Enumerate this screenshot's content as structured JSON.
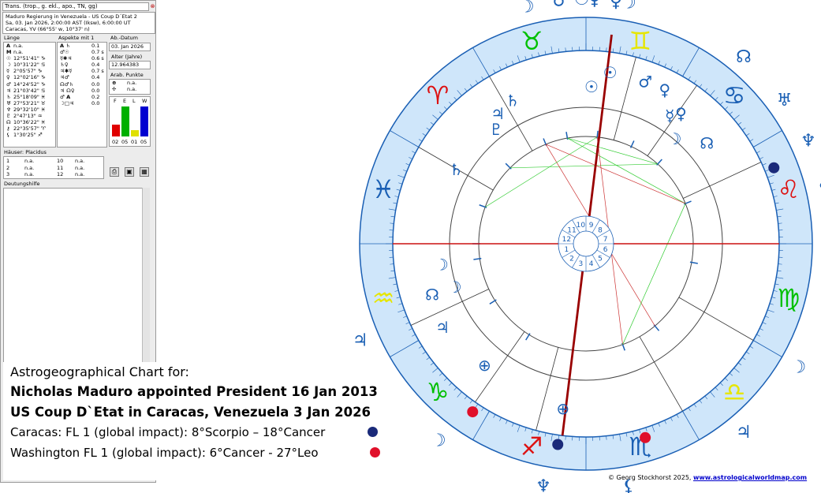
{
  "window": {
    "title": "Trans. (trop., g. ekl., apo., TN, gg)",
    "close_glyph": "⊗",
    "info_lines": [
      "Maduro Regierung in Venezuela - US Coup D´Etat 2",
      "Sa, 03. Jan 2026, 2:00:00 AST (Iksw), 6:00:00 UT",
      "Caracas, YV (66°55' w, 10°37' n)"
    ]
  },
  "sections": {
    "longitude": "Länge",
    "aspects": "Aspekte mit 1",
    "reference_date": "Ab.-Datum",
    "age": "Alter (Jahre)",
    "arabic_points": "Arab. Punkte",
    "houses": "Häuser: Placidus",
    "interpretation": "Deutungshilfe"
  },
  "longitudes": [
    {
      "glyph": "A",
      "value": "n.a."
    },
    {
      "glyph": "M",
      "value": "n.a."
    },
    {
      "glyph": "☉",
      "value": "12°51'41\" ♑"
    },
    {
      "glyph": "☽",
      "value": "10°31'22\" ♋"
    },
    {
      "glyph": "☿",
      "value": "2°05'57\" ♑"
    },
    {
      "glyph": "♀",
      "value": "12°02'16\" ♑"
    },
    {
      "glyph": "♂",
      "value": "14°24'52\" ♑"
    },
    {
      "glyph": "♃",
      "value": "21°03'42\" ♋"
    },
    {
      "glyph": "♄",
      "value": "25°18'09\" ♓"
    },
    {
      "glyph": "♅",
      "value": "27°53'21\" ♉"
    },
    {
      "glyph": "♆",
      "value": "29°32'10\" ♓"
    },
    {
      "glyph": "♇",
      "value": "2°47'13\" ♒"
    },
    {
      "glyph": "☊",
      "value": "10°36'22\" ♓"
    },
    {
      "glyph": "⚷",
      "value": "22°35'57\" ♈"
    },
    {
      "glyph": "⚸",
      "value": "1°30'25\" ♐"
    }
  ],
  "aspects": [
    {
      "pair": "A ♄",
      "orb": "0.1"
    },
    {
      "pair": "♂☉",
      "orb": "0.7 s"
    },
    {
      "pair": "☿✱♃",
      "orb": "0.6 s"
    },
    {
      "pair": "♄♀",
      "orb": "0.4"
    },
    {
      "pair": "♃✱☿",
      "orb": "0.7 s"
    },
    {
      "pair": "♃♂",
      "orb": "0.4"
    },
    {
      "pair": "☊♂♄",
      "orb": "0.0"
    },
    {
      "pair": "♃ ☊♀",
      "orb": "0.0"
    },
    {
      "pair": "♂ A",
      "orb": "0.2"
    },
    {
      "pair": "☽□♃",
      "orb": "0.0"
    }
  ],
  "reference_date_value": "03. Jan 2026",
  "age_value": "12.964383",
  "arabic_points": [
    {
      "glyph": "⊕",
      "value": "n.a."
    },
    {
      "glyph": "✢",
      "value": "n.a."
    }
  ],
  "elements": {
    "labels": [
      "F",
      "E",
      "L",
      "W"
    ],
    "values": [
      "02",
      "05",
      "01",
      "05"
    ],
    "colors": [
      "#e00000",
      "#00b000",
      "#e0e000",
      "#0000d0"
    ]
  },
  "houses": [
    {
      "n": "1",
      "v": "n.a."
    },
    {
      "n": "10",
      "v": "n.a."
    },
    {
      "n": "2",
      "v": "n.a."
    },
    {
      "n": "11",
      "v": "n.a."
    },
    {
      "n": "3",
      "v": "n.a."
    },
    {
      "n": "12",
      "v": "n.a."
    }
  ],
  "legend": {
    "line1": "Astrogeographical Chart for:",
    "line2": "Nicholas Maduro appointed President 16 Jan 2013",
    "line3": "US Coup D`Etat in Caracas, Venezuela 3 Jan 2026",
    "line4": "Caracas: FL 1 (global impact): 8°Scorpio – 18°Cancer",
    "line5": "Washington FL 1 (global impact):  6°Cancer - 27°Leo",
    "dot_colors": {
      "caracas": "#1a2a7a",
      "washington": "#e0102a"
    }
  },
  "copyright": {
    "text": "© Georg Stockhorst 2025, ",
    "link": "www.astrologicalworldmap.com"
  },
  "chart": {
    "colors": {
      "ring": "#1a5fb4",
      "zodiac_band": "#cfe6fa",
      "axis": "#cc1111",
      "meridian": "#990000"
    },
    "zodiac": [
      {
        "glyph": "♉",
        "color": "#00c000"
      },
      {
        "glyph": "♈",
        "color": "#dd1111"
      },
      {
        "glyph": "♓",
        "color": "#1a5fb4"
      },
      {
        "glyph": "♒",
        "color": "#e6e600"
      },
      {
        "glyph": "♑",
        "color": "#00c000"
      },
      {
        "glyph": "♐",
        "color": "#dd1111"
      },
      {
        "glyph": "♏",
        "color": "#1a5fb4"
      },
      {
        "glyph": "♎",
        "color": "#e6e600"
      },
      {
        "glyph": "♍",
        "color": "#00c000"
      },
      {
        "glyph": "♌",
        "color": "#dd1111"
      },
      {
        "glyph": "♋",
        "color": "#1a5fb4"
      },
      {
        "glyph": "♊",
        "color": "#e6e600"
      }
    ],
    "house_numbers": [
      "1",
      "2",
      "3",
      "4",
      "5",
      "6",
      "7",
      "8",
      "9",
      "10",
      "11",
      "12"
    ],
    "outer_planets": [
      "☽",
      "♂",
      "☉",
      "♀",
      "♀",
      "☽",
      "☊",
      "♅",
      "⚷",
      "♆",
      "⚸",
      "☽",
      "♃",
      "⚸",
      "♆",
      "☽",
      "♃"
    ],
    "inner_planets": [
      "☉",
      "♂",
      "♀",
      "☿",
      "♀",
      "☽",
      "♄",
      "♃",
      "☉",
      "♇",
      "☊",
      "♄",
      "☊",
      "☽",
      "♃",
      "☽",
      "⊕",
      "⊕"
    ]
  }
}
